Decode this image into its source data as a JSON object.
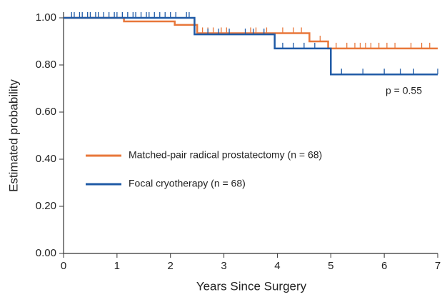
{
  "chart_data": {
    "type": "step",
    "x_label": "Years  Since  Surgery",
    "y_label": "Estimated probability",
    "annotation": "p = 0.55",
    "xlim": [
      0,
      7
    ],
    "xticks": [
      0,
      1,
      2,
      3,
      4,
      5,
      6,
      7
    ],
    "ylim": [
      0,
      1
    ],
    "yticks": [
      {
        "value": 0,
        "label": "0.00"
      },
      {
        "value": 0.2,
        "label": "0.20"
      },
      {
        "value": 0.4,
        "label": "0.40"
      },
      {
        "value": 0.6,
        "label": "0.60"
      },
      {
        "value": 0.8,
        "label": "0.80"
      },
      {
        "value": 1,
        "label": "1.00"
      }
    ],
    "series": [
      {
        "name": "Matched-pair radical prostatectomy (n = 68)",
        "color": "#e8773a",
        "x": [
          0,
          1.13,
          2.08,
          2.5,
          4.6,
          4.95
        ],
        "values": [
          1.0,
          0.985,
          0.97,
          0.935,
          0.9,
          0.87
        ],
        "censored": [
          2.6,
          2.7,
          2.8,
          2.95,
          3.05,
          3.5,
          3.6,
          3.8,
          4.1,
          4.3,
          4.45,
          4.8,
          5.1,
          5.3,
          5.45,
          5.55,
          5.65,
          5.75,
          5.9,
          6.05,
          6.2,
          6.5,
          6.7,
          6.85
        ]
      },
      {
        "name": "Focal cryotherapy (n = 68)",
        "color": "#1f5aa6",
        "x": [
          0,
          2.45,
          3.95,
          5.0
        ],
        "values": [
          1.0,
          0.93,
          0.87,
          0.76
        ],
        "censored": [
          0.15,
          0.2,
          0.3,
          0.35,
          0.45,
          0.5,
          0.6,
          0.65,
          0.75,
          0.85,
          0.95,
          1.0,
          1.1,
          1.2,
          1.3,
          1.35,
          1.45,
          1.55,
          1.6,
          1.7,
          1.8,
          1.9,
          2.0,
          2.1,
          2.3,
          2.35,
          2.7,
          2.9,
          3.1,
          3.4,
          3.55,
          3.75,
          4.1,
          4.3,
          4.5,
          4.7,
          5.2,
          5.6,
          6.0,
          6.3,
          6.55,
          7.0
        ]
      }
    ],
    "legend": "left"
  }
}
